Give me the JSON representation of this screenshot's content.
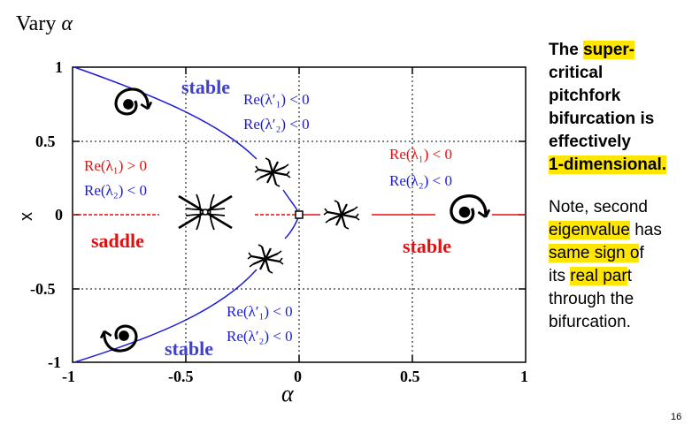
{
  "title": {
    "text": "Vary",
    "symbol": "α"
  },
  "plot": {
    "ylabel": "x",
    "xlabel": "α",
    "x_ticks": [
      "-1",
      "-0.5",
      "0",
      "0.5",
      "1"
    ],
    "y_ticks": [
      "1",
      "0.5",
      "0",
      "-0.5",
      "-1"
    ],
    "xlim": [
      -1,
      1
    ],
    "ylim": [
      -1,
      1
    ],
    "labels": {
      "stable_top": "stable",
      "stable_bottom": "stable",
      "stable_right": "stable",
      "saddle": "saddle",
      "top_cond1": "Re(λ′₁) < 0",
      "top_cond2": "Re(λ′₂) < 0",
      "left_cond1": "Re(λ₁) > 0",
      "left_cond2": "Re(λ₂) < 0",
      "right_cond1": "Re(λ₁) < 0",
      "right_cond2": "Re(λ₂) < 0",
      "bottom_cond1": "Re(λ′₁) < 0",
      "bottom_cond2": "Re(λ′₂) < 0"
    },
    "colors": {
      "blue": "#1c1cd6",
      "red": "#e01010",
      "stable_blue": "#4040c8"
    }
  },
  "note": {
    "para1": [
      "The",
      "super-",
      "critical",
      "pitchfork",
      "bifurcation is",
      "effectively",
      "1-dimensional."
    ],
    "para2_line1": "Note, second",
    "para2_line2a": "eigenvalue",
    "para2_line2b": " has",
    "para2_line3a": "same sign o",
    "para2_line3b": "f",
    "para2_line4a": "its ",
    "para2_line4b": "real par",
    "para2_line4c": "t",
    "para2_line5": "through the",
    "para2_line6": "bifurcation."
  },
  "slide_number": "16"
}
